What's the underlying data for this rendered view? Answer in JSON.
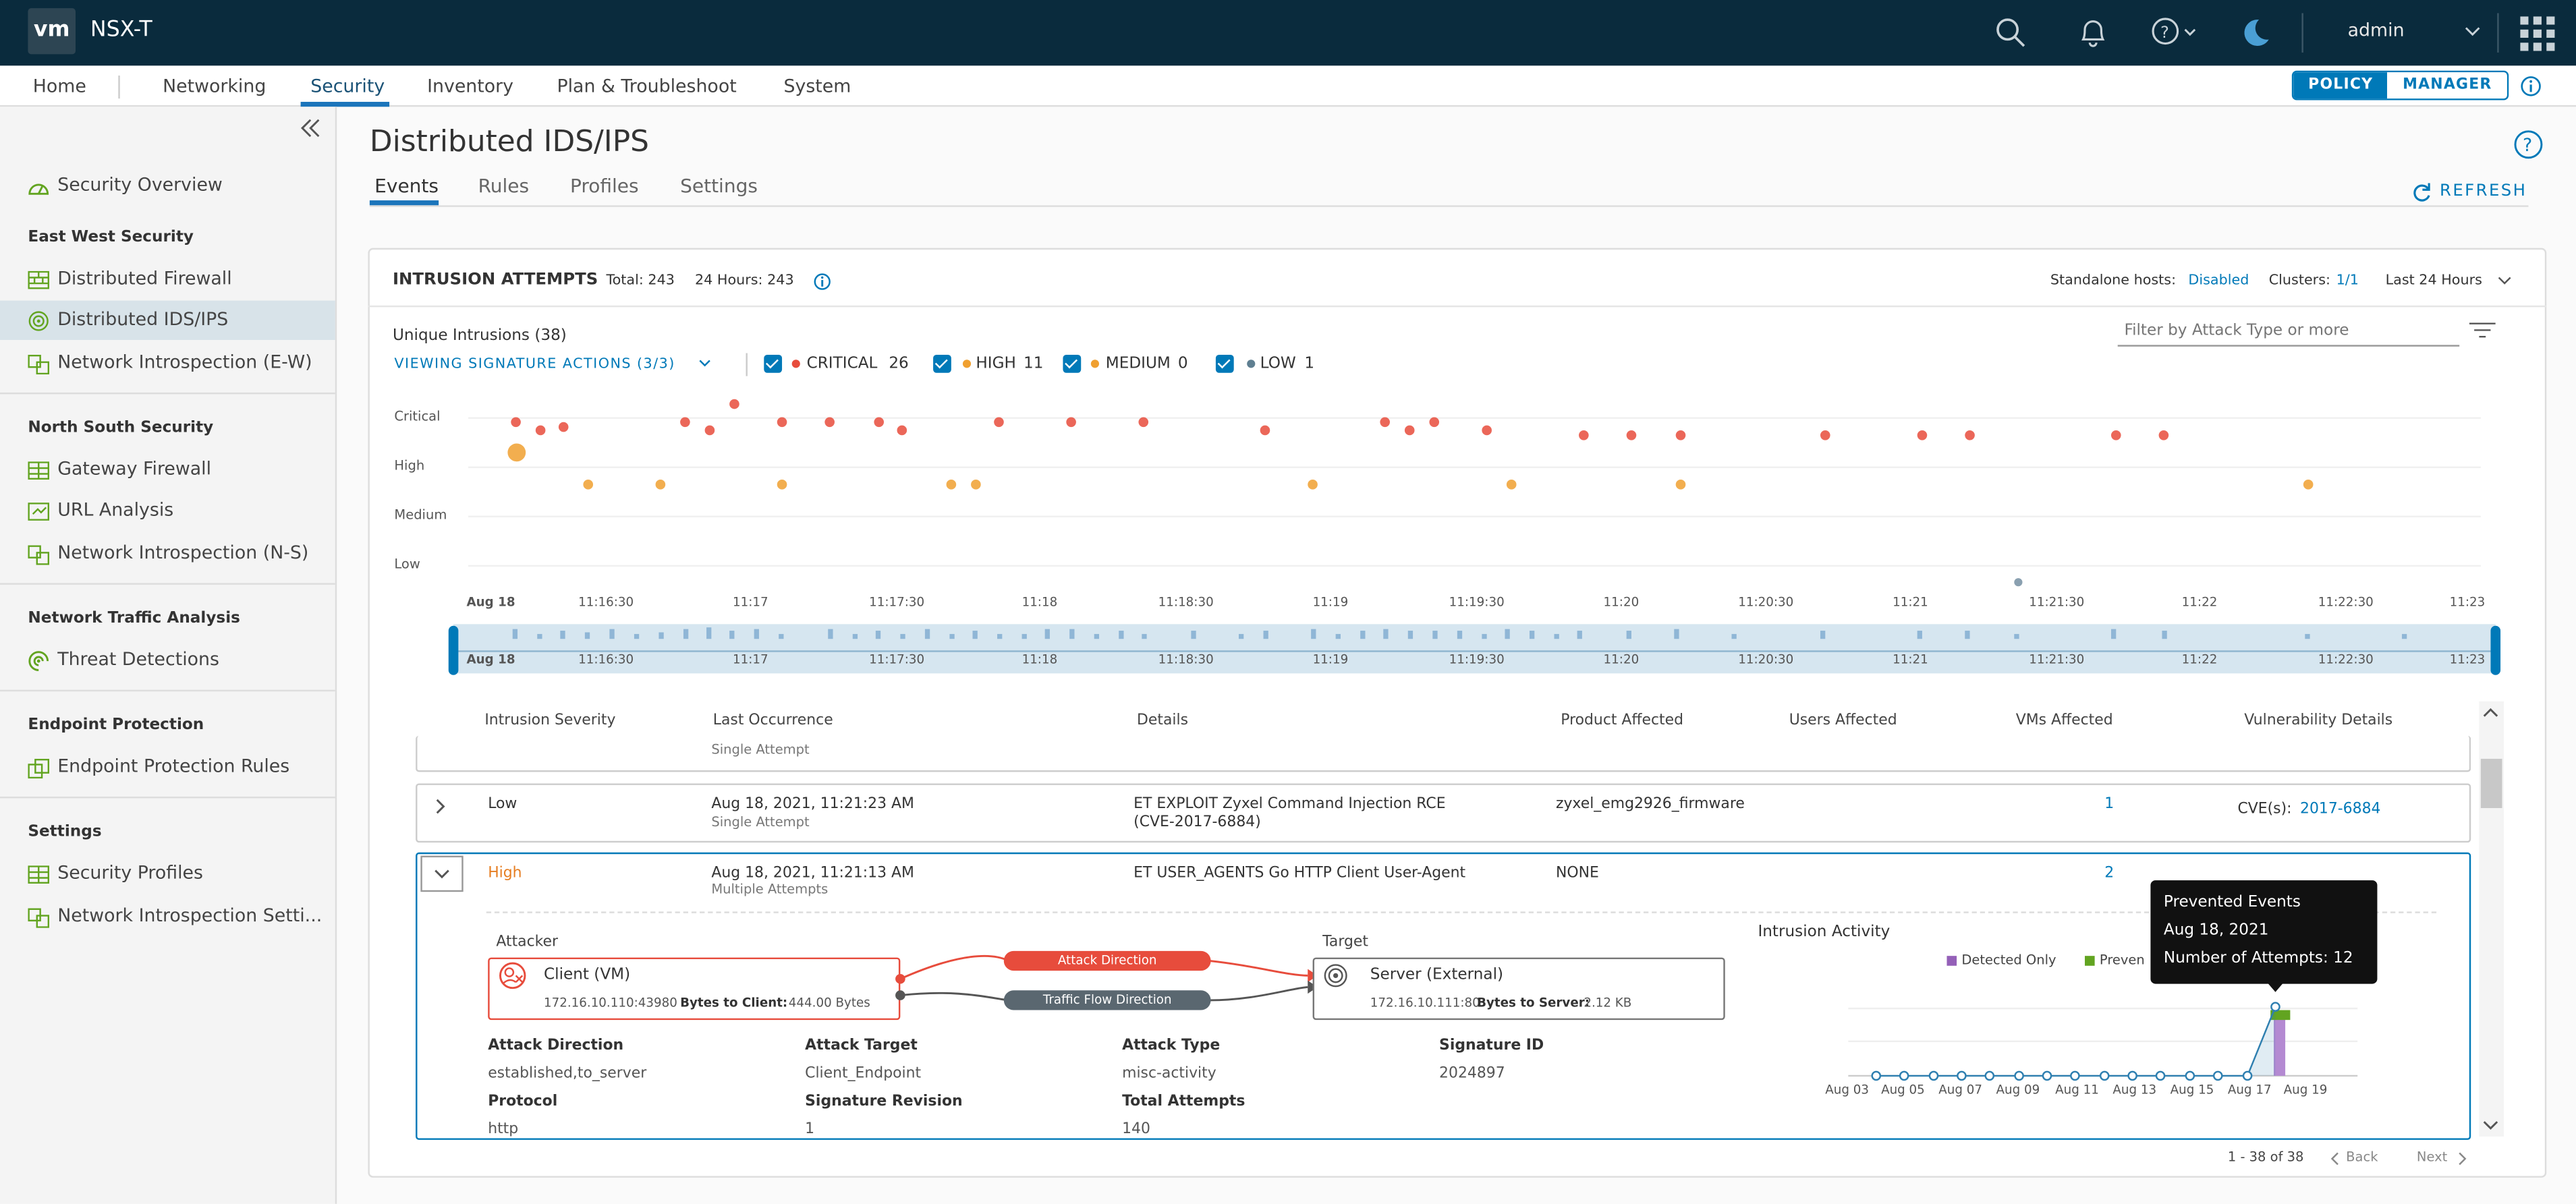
{
  "header": {
    "logo": "vm",
    "app_title": "NSX-T",
    "user": "admin"
  },
  "nav": {
    "items": [
      "Home",
      "Networking",
      "Security",
      "Inventory",
      "Plan & Troubleshoot",
      "System"
    ],
    "mode": {
      "policy": "POLICY",
      "manager": "MANAGER"
    }
  },
  "sidebar": {
    "overview": "Security Overview",
    "sections": [
      {
        "title": "East West Security",
        "items": [
          "Distributed Firewall",
          "Distributed IDS/IPS",
          "Network Introspection (E-W)"
        ]
      },
      {
        "title": "North South Security",
        "items": [
          "Gateway Firewall",
          "URL Analysis",
          "Network Introspection (N-S)"
        ]
      },
      {
        "title": "Network Traffic Analysis",
        "items": [
          "Threat Detections"
        ]
      },
      {
        "title": "Endpoint Protection",
        "items": [
          "Endpoint Protection Rules"
        ]
      },
      {
        "title": "Settings",
        "items": [
          "Security Profiles",
          "Network Introspection Setti..."
        ]
      }
    ]
  },
  "page": {
    "title": "Distributed IDS/IPS",
    "tabs": [
      "Events",
      "Rules",
      "Profiles",
      "Settings"
    ],
    "refresh": "REFRESH"
  },
  "intrusions": {
    "title": "INTRUSION ATTEMPTS",
    "total": "Total: 243",
    "hours24": "24 Hours: 243",
    "standalone_label": "Standalone hosts:",
    "standalone_value": "Disabled",
    "clusters_label": "Clusters:",
    "clusters_value": "1/1",
    "timerange": "Last 24 Hours",
    "unique": "Unique Intrusions (38)",
    "filter_placeholder": "Filter by Attack Type or more",
    "viewing": "VIEWING SIGNATURE ACTIONS (3/3)",
    "severities": [
      {
        "label": "CRITICAL",
        "count": "26",
        "color": "#e74c3c"
      },
      {
        "label": "HIGH",
        "count": "11",
        "color": "#f0a030"
      },
      {
        "label": "MEDIUM",
        "count": "0",
        "color": "#f0a030"
      },
      {
        "label": "LOW",
        "count": "1",
        "color": "#5f7f91"
      }
    ],
    "row_labels": [
      "Critical",
      "High",
      "Medium",
      "Low"
    ],
    "time_ticks": [
      "Aug 18",
      "11:16:30",
      "11:17",
      "11:17:30",
      "11:18",
      "11:18:30",
      "11:19",
      "11:19:30",
      "11:20",
      "11:20:30",
      "11:21",
      "11:21:30",
      "11:22",
      "11:22:30",
      "11:23"
    ]
  },
  "table": {
    "headers": [
      "Intrusion Severity",
      "Last Occurrence",
      "Details",
      "Product Affected",
      "Users Affected",
      "VMs Affected",
      "Vulnerability Details"
    ],
    "partial_row_note": "Single Attempt",
    "rows": [
      {
        "severity": "Low",
        "last": "Aug 18, 2021, 11:21:23 AM",
        "attempts": "Single Attempt",
        "details": "ET EXPLOIT Zyxel Command Injection RCE",
        "details2": "(CVE-2017-6884)",
        "product": "zyxel_emg2926_firmware",
        "vms": "1",
        "cve_label": "CVE(s):",
        "cve": "2017-6884"
      },
      {
        "severity": "High",
        "last": "Aug 18, 2021, 11:21:13 AM",
        "attempts": "Multiple Attempts",
        "details": "ET USER_AGENTS Go HTTP Client User-Agent",
        "product": "NONE",
        "vms": "2"
      }
    ]
  },
  "detail": {
    "attacker_label": "Attacker",
    "target_label": "Target",
    "client_name": "Client (VM)",
    "client_ip": "172.16.10.110:43980",
    "client_bytes_label": "Bytes to Client:",
    "client_bytes": "444.00 Bytes",
    "server_name": "Server (External)",
    "server_ip": "172.16.10.111:80",
    "server_bytes_label": "Bytes to Server:",
    "server_bytes": "2.12 KB",
    "attack_dir_pill": "Attack Direction",
    "traffic_dir_pill": "Traffic Flow Direction",
    "fields": [
      {
        "label": "Attack Direction",
        "value": "established,to_server"
      },
      {
        "label": "Attack Target",
        "value": "Client_Endpoint"
      },
      {
        "label": "Attack Type",
        "value": "misc-activity"
      },
      {
        "label": "Signature ID",
        "value": "2024897"
      },
      {
        "label": "Protocol",
        "value": "http"
      },
      {
        "label": "Signature Revision",
        "value": "1"
      },
      {
        "label": "Total Attempts",
        "value": "140"
      }
    ],
    "activity_title": "Intrusion Activity",
    "legend_detected": "Detected Only",
    "legend_prevented": "Preven",
    "tooltip_title": "Prevented Events",
    "tooltip_date": "Aug 18, 2021",
    "tooltip_attempts": "Number of Attempts: 12",
    "activity_dates": [
      "Aug 03",
      "Aug 05",
      "Aug 07",
      "Aug 09",
      "Aug 11",
      "Aug 13",
      "Aug 15",
      "Aug 17",
      "Aug 19"
    ]
  },
  "pagination": {
    "range": "1 - 38 of 38",
    "back": "Back",
    "next": "Next"
  },
  "colors": {
    "header_bg": "#0a2b3d",
    "accent": "#0079b8",
    "critical": "#e74c3c",
    "high": "#f0a030",
    "prevented": "#62a420",
    "detected": "#9460b8"
  }
}
